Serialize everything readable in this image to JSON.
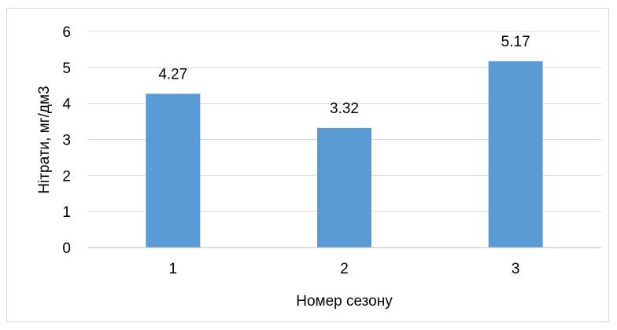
{
  "chart_data": {
    "type": "bar",
    "categories": [
      "1",
      "2",
      "3"
    ],
    "values": [
      4.27,
      3.32,
      5.17
    ],
    "data_labels": [
      "4.27",
      "3.32",
      "5.17"
    ],
    "title": "",
    "xlabel": "Номер сезону",
    "ylabel": "Нітрати, мг/дм3",
    "ylim": [
      0,
      6
    ],
    "yticks": [
      0,
      1,
      2,
      3,
      4,
      5,
      6
    ],
    "ytick_labels": [
      "0",
      "1",
      "2",
      "3",
      "4",
      "5",
      "6"
    ],
    "grid": true,
    "legend": "none",
    "colors": {
      "bar": "#5b9bd5",
      "grid": "#d9d9d9",
      "axis": "#bfbfbf"
    }
  }
}
